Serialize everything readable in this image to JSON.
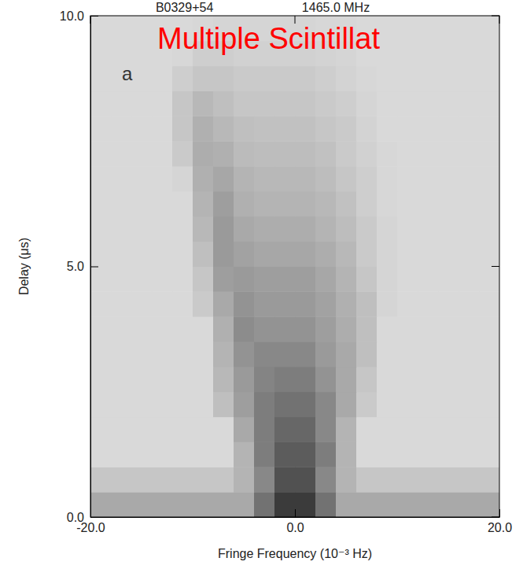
{
  "chart_data": {
    "type": "heatmap",
    "title": "B0329+54",
    "subtitle": "1465.0 MHz",
    "annotation": "Multiple Scintillat",
    "annotation_color": "#ff0000",
    "panel_label": "a",
    "x_label": "Fringe Frequency (10⁻³ Hz)",
    "y_label": "Delay (μs)",
    "xlim": [
      -20,
      20
    ],
    "ylim": [
      0,
      10
    ],
    "xticks": [
      {
        "value": -20,
        "label": "-20.0"
      },
      {
        "value": 0,
        "label": "0.0"
      },
      {
        "value": 20,
        "label": "20.0"
      }
    ],
    "yticks": [
      {
        "value": 0,
        "label": "0.0"
      },
      {
        "value": 5,
        "label": "5.0"
      },
      {
        "value": 10,
        "label": "10.0"
      }
    ],
    "x_edges": [
      -20,
      -18,
      -16,
      -14,
      -12,
      -10,
      -8,
      -6,
      -4,
      -2,
      0,
      2,
      4,
      6,
      8,
      10,
      12,
      14,
      16,
      18,
      20
    ],
    "y_edges": [
      0,
      0.5,
      1,
      1.5,
      2,
      2.5,
      3,
      3.5,
      4,
      4.5,
      5,
      5.5,
      6,
      6.5,
      7,
      7.5,
      8,
      8.5,
      9,
      9.5,
      10
    ],
    "zlim": [
      0,
      1
    ],
    "values": [
      [
        0.35,
        0.35,
        0.35,
        0.35,
        0.35,
        0.35,
        0.35,
        0.35,
        0.6,
        0.85,
        0.85,
        0.6,
        0.35,
        0.35,
        0.35,
        0.35,
        0.35,
        0.35,
        0.35,
        0.35
      ],
      [
        0.22,
        0.22,
        0.22,
        0.22,
        0.22,
        0.22,
        0.22,
        0.3,
        0.5,
        0.75,
        0.75,
        0.5,
        0.3,
        0.22,
        0.22,
        0.22,
        0.22,
        0.22,
        0.22,
        0.22
      ],
      [
        0.13,
        0.13,
        0.13,
        0.13,
        0.13,
        0.13,
        0.13,
        0.3,
        0.55,
        0.7,
        0.7,
        0.55,
        0.3,
        0.13,
        0.13,
        0.13,
        0.13,
        0.13,
        0.13,
        0.13
      ],
      [
        0.13,
        0.13,
        0.13,
        0.13,
        0.13,
        0.13,
        0.13,
        0.35,
        0.55,
        0.65,
        0.65,
        0.5,
        0.3,
        0.13,
        0.13,
        0.13,
        0.13,
        0.13,
        0.13,
        0.13
      ],
      [
        0.13,
        0.13,
        0.13,
        0.13,
        0.13,
        0.13,
        0.25,
        0.4,
        0.55,
        0.6,
        0.6,
        0.5,
        0.35,
        0.2,
        0.13,
        0.13,
        0.13,
        0.13,
        0.13,
        0.13
      ],
      [
        0.13,
        0.13,
        0.13,
        0.13,
        0.13,
        0.13,
        0.28,
        0.42,
        0.52,
        0.55,
        0.55,
        0.45,
        0.35,
        0.22,
        0.13,
        0.13,
        0.13,
        0.13,
        0.13,
        0.13
      ],
      [
        0.13,
        0.13,
        0.13,
        0.13,
        0.13,
        0.13,
        0.3,
        0.45,
        0.5,
        0.5,
        0.5,
        0.42,
        0.35,
        0.25,
        0.13,
        0.13,
        0.13,
        0.13,
        0.13,
        0.13
      ],
      [
        0.13,
        0.13,
        0.13,
        0.13,
        0.13,
        0.13,
        0.32,
        0.48,
        0.45,
        0.45,
        0.45,
        0.4,
        0.33,
        0.25,
        0.13,
        0.13,
        0.13,
        0.13,
        0.13,
        0.13
      ],
      [
        0.13,
        0.13,
        0.13,
        0.13,
        0.13,
        0.2,
        0.35,
        0.45,
        0.42,
        0.42,
        0.42,
        0.38,
        0.32,
        0.25,
        0.15,
        0.13,
        0.13,
        0.13,
        0.13,
        0.13
      ],
      [
        0.13,
        0.13,
        0.13,
        0.13,
        0.13,
        0.22,
        0.4,
        0.42,
        0.4,
        0.4,
        0.4,
        0.36,
        0.3,
        0.22,
        0.15,
        0.13,
        0.13,
        0.13,
        0.13,
        0.13
      ],
      [
        0.13,
        0.13,
        0.13,
        0.13,
        0.13,
        0.25,
        0.42,
        0.38,
        0.36,
        0.36,
        0.36,
        0.33,
        0.28,
        0.2,
        0.15,
        0.13,
        0.13,
        0.13,
        0.13,
        0.13
      ],
      [
        0.13,
        0.13,
        0.13,
        0.13,
        0.13,
        0.28,
        0.42,
        0.35,
        0.33,
        0.33,
        0.33,
        0.3,
        0.26,
        0.2,
        0.15,
        0.13,
        0.13,
        0.13,
        0.13,
        0.13
      ],
      [
        0.13,
        0.13,
        0.13,
        0.13,
        0.13,
        0.3,
        0.4,
        0.32,
        0.3,
        0.3,
        0.3,
        0.28,
        0.24,
        0.18,
        0.14,
        0.13,
        0.13,
        0.13,
        0.13,
        0.13
      ],
      [
        0.13,
        0.13,
        0.13,
        0.13,
        0.15,
        0.32,
        0.36,
        0.3,
        0.28,
        0.28,
        0.28,
        0.26,
        0.22,
        0.18,
        0.14,
        0.13,
        0.13,
        0.13,
        0.13,
        0.13
      ],
      [
        0.13,
        0.13,
        0.13,
        0.13,
        0.2,
        0.33,
        0.32,
        0.27,
        0.26,
        0.26,
        0.26,
        0.24,
        0.2,
        0.17,
        0.14,
        0.13,
        0.13,
        0.13,
        0.13,
        0.13
      ],
      [
        0.13,
        0.13,
        0.13,
        0.13,
        0.22,
        0.32,
        0.28,
        0.25,
        0.24,
        0.24,
        0.24,
        0.22,
        0.2,
        0.16,
        0.13,
        0.13,
        0.13,
        0.13,
        0.13,
        0.13
      ],
      [
        0.13,
        0.13,
        0.13,
        0.13,
        0.22,
        0.28,
        0.25,
        0.22,
        0.22,
        0.22,
        0.22,
        0.2,
        0.18,
        0.15,
        0.13,
        0.13,
        0.13,
        0.13,
        0.13,
        0.13
      ],
      [
        0.13,
        0.13,
        0.13,
        0.13,
        0.18,
        0.22,
        0.22,
        0.2,
        0.2,
        0.2,
        0.2,
        0.18,
        0.16,
        0.14,
        0.13,
        0.13,
        0.13,
        0.13,
        0.13,
        0.13
      ],
      [
        0.13,
        0.13,
        0.13,
        0.13,
        0.14,
        0.18,
        0.18,
        0.17,
        0.17,
        0.17,
        0.17,
        0.16,
        0.15,
        0.13,
        0.13,
        0.13,
        0.13,
        0.13,
        0.13,
        0.13
      ],
      [
        0.13,
        0.13,
        0.13,
        0.13,
        0.13,
        0.14,
        0.15,
        0.15,
        0.15,
        0.15,
        0.15,
        0.14,
        0.14,
        0.13,
        0.13,
        0.13,
        0.13,
        0.13,
        0.13,
        0.13
      ]
    ]
  }
}
